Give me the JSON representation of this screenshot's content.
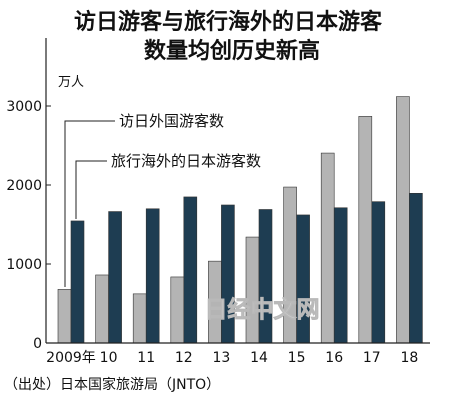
{
  "colors": {
    "inbound_bar": "#b4b4b4",
    "outbound_bar": "#1e3d52",
    "bar_edge": "#333333",
    "axis": "#222222"
  },
  "chart_data": {
    "type": "bar",
    "title_line1": "访日游客与旅行海外的日本游客",
    "title_line2": "数量均创历史新高",
    "unit": "万人",
    "categories": [
      "2009年",
      "10",
      "11",
      "12",
      "13",
      "14",
      "15",
      "16",
      "17",
      "18"
    ],
    "series": [
      {
        "name": "访日外国游客数",
        "values": [
          679,
          861,
          622,
          836,
          1036,
          1341,
          1974,
          2404,
          2869,
          3119
        ]
      },
      {
        "name": "旅行海外的日本游客数",
        "values": [
          1545,
          1664,
          1699,
          1849,
          1747,
          1690,
          1621,
          1712,
          1789,
          1895
        ]
      }
    ],
    "ylim": [
      0,
      3000
    ],
    "yticks": [
      0,
      1000,
      2000,
      3000
    ],
    "grid": false,
    "legend": "callout labels with leader lines"
  },
  "watermark": "日经中文网",
  "source": "（出处）日本国家旅游局（JNTO）"
}
